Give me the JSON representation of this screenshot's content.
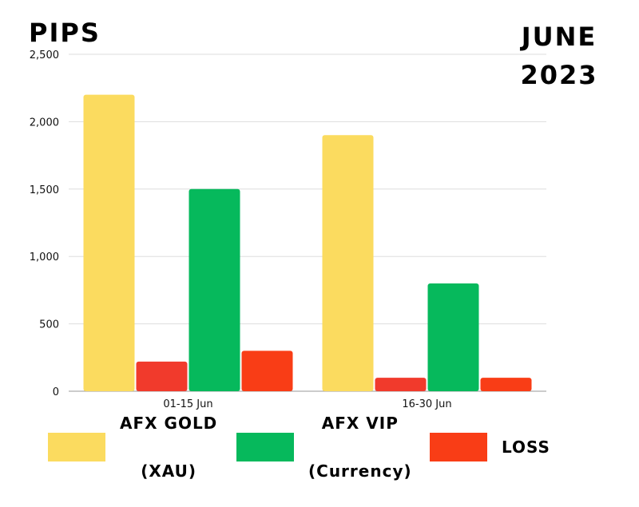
{
  "header": {
    "left_title": "PIPS",
    "right_title_line1": "JUNE",
    "right_title_line2": "2023"
  },
  "chart_data": {
    "type": "bar",
    "title": "PIPS",
    "xlabel": "",
    "ylabel": "",
    "categories": [
      "01-15 Jun",
      "16-30 Jun"
    ],
    "series": [
      {
        "name": "AFX GOLD (XAU)",
        "color": "#FBDB5F",
        "values": [
          2200,
          1900
        ]
      },
      {
        "name": "LOSS",
        "color": "#F13A2C",
        "values": [
          220,
          100
        ]
      },
      {
        "name": "AFX VIP (Currency)",
        "color": "#06B95C",
        "values": [
          1500,
          800
        ]
      },
      {
        "name": "LOSS",
        "color": "#F93D16",
        "values": [
          300,
          100
        ]
      }
    ],
    "yticks": [
      "0",
      "500",
      "1,000",
      "1,500",
      "2,000",
      "2,500"
    ],
    "ytick_values": [
      0,
      500,
      1000,
      1500,
      2000,
      2500
    ],
    "ylim": [
      0,
      2500
    ],
    "grid": true
  },
  "legend": [
    {
      "line1": "AFX GOLD",
      "line2": "(XAU)",
      "color": "#FBDB5F"
    },
    {
      "line1": "AFX VIP",
      "line2": "(Currency)",
      "color": "#06B95C"
    },
    {
      "line1": "LOSS",
      "line2": "",
      "color": "#F93D16"
    }
  ]
}
